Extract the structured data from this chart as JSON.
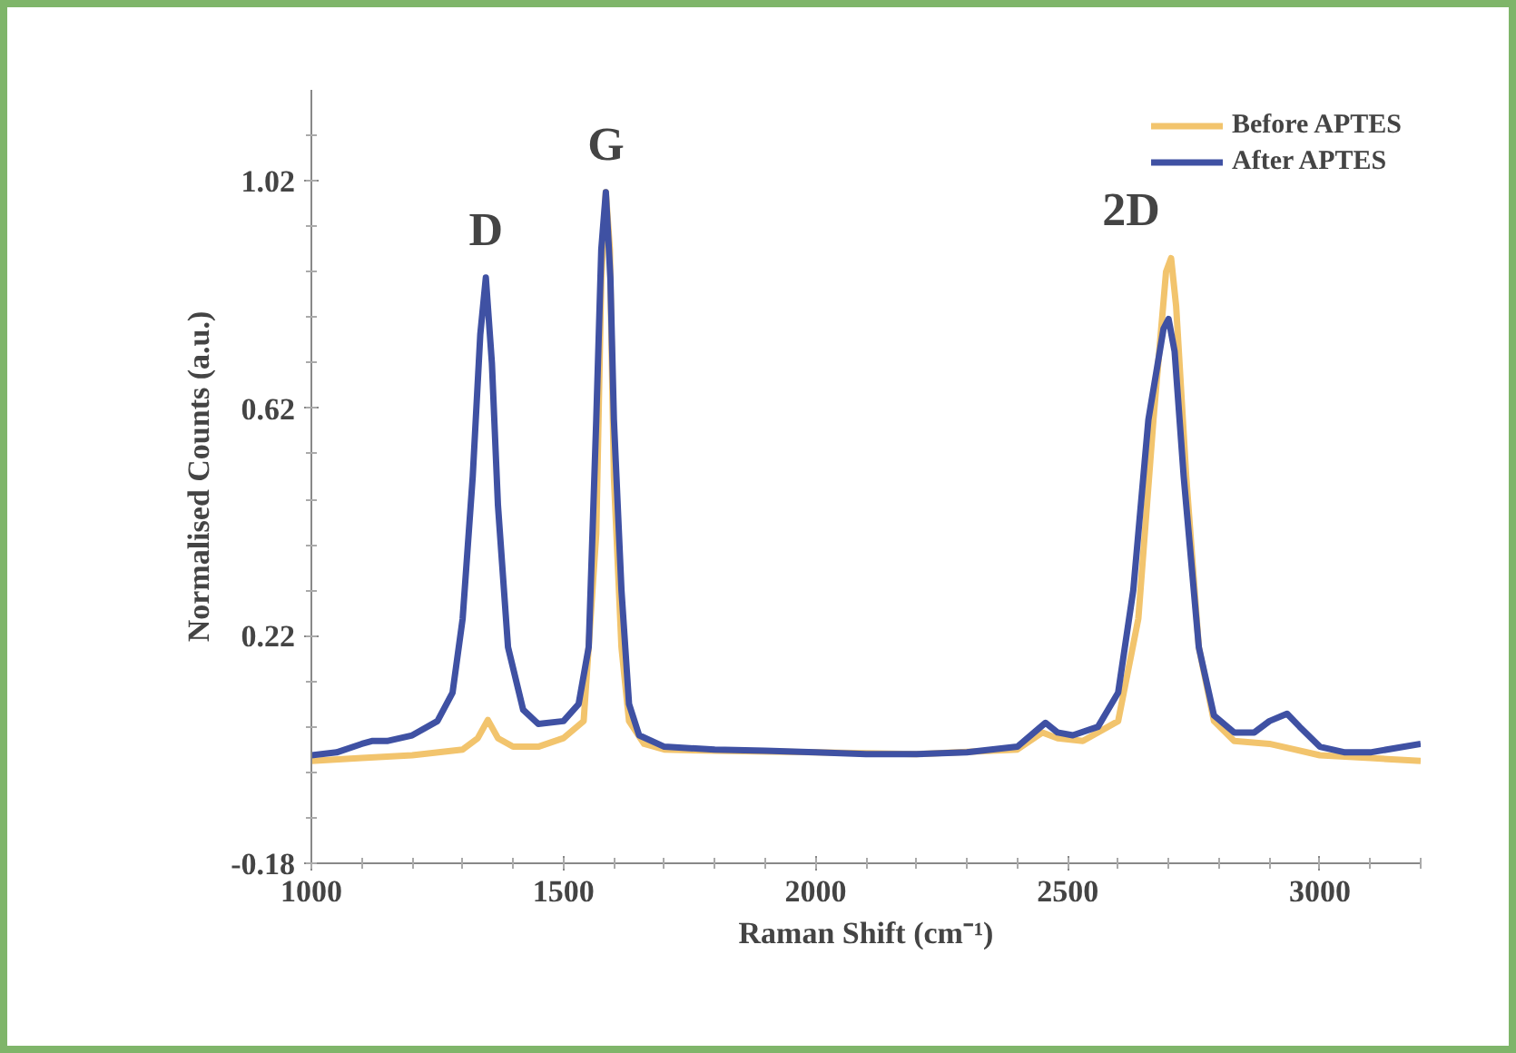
{
  "chart_data": {
    "type": "line",
    "xlabel": "Raman Shift (cm⁻¹)",
    "ylabel": "Normalised Counts (a.u.)",
    "xlim": [
      1000,
      3200
    ],
    "xticks": [
      1000,
      1500,
      2000,
      2500,
      3000
    ],
    "ylim": [
      -0.18,
      1.18
    ],
    "yticks": [
      -0.18,
      0.22,
      0.62,
      1.02
    ],
    "grid": false,
    "legend": "top right",
    "marker": "none",
    "line_style": "solid",
    "annotations": [
      "D",
      "G",
      "2D"
    ],
    "series": [
      {
        "name": "Before APTES",
        "color": "#f2c46d",
        "x": [
          1000,
          1100,
          1200,
          1300,
          1330,
          1350,
          1370,
          1400,
          1450,
          1500,
          1540,
          1565,
          1575,
          1584,
          1592,
          1600,
          1615,
          1630,
          1660,
          1700,
          1800,
          2000,
          2200,
          2400,
          2450,
          2480,
          2530,
          2600,
          2640,
          2670,
          2695,
          2705,
          2715,
          2735,
          2760,
          2790,
          2830,
          2900,
          2950,
          3000,
          3100,
          3200
        ],
        "values": [
          0.0,
          0.005,
          0.01,
          0.02,
          0.04,
          0.072,
          0.04,
          0.025,
          0.025,
          0.04,
          0.07,
          0.4,
          0.85,
          1.0,
          0.9,
          0.5,
          0.2,
          0.07,
          0.03,
          0.02,
          0.018,
          0.015,
          0.012,
          0.02,
          0.05,
          0.04,
          0.035,
          0.07,
          0.25,
          0.6,
          0.86,
          0.884,
          0.8,
          0.5,
          0.2,
          0.07,
          0.035,
          0.03,
          0.02,
          0.01,
          0.005,
          0.0
        ]
      },
      {
        "name": "After APTES",
        "color": "#3f51a3",
        "x": [
          1000,
          1050,
          1100,
          1120,
          1150,
          1200,
          1250,
          1280,
          1300,
          1320,
          1335,
          1346,
          1358,
          1370,
          1390,
          1420,
          1450,
          1500,
          1530,
          1550,
          1565,
          1575,
          1584,
          1593,
          1600,
          1615,
          1630,
          1650,
          1700,
          1800,
          1900,
          2000,
          2100,
          2200,
          2300,
          2400,
          2440,
          2456,
          2480,
          2510,
          2560,
          2600,
          2630,
          2660,
          2690,
          2700,
          2712,
          2730,
          2760,
          2790,
          2830,
          2870,
          2900,
          2935,
          2960,
          3000,
          3050,
          3100,
          3200
        ],
        "values": [
          0.01,
          0.015,
          0.03,
          0.035,
          0.035,
          0.045,
          0.07,
          0.12,
          0.25,
          0.5,
          0.75,
          0.85,
          0.7,
          0.45,
          0.2,
          0.09,
          0.065,
          0.07,
          0.1,
          0.2,
          0.6,
          0.9,
          1.0,
          0.85,
          0.6,
          0.3,
          0.1,
          0.045,
          0.025,
          0.02,
          0.018,
          0.015,
          0.012,
          0.012,
          0.015,
          0.025,
          0.055,
          0.067,
          0.05,
          0.045,
          0.06,
          0.12,
          0.3,
          0.6,
          0.76,
          0.777,
          0.72,
          0.5,
          0.2,
          0.08,
          0.05,
          0.05,
          0.07,
          0.083,
          0.06,
          0.025,
          0.015,
          0.015,
          0.03
        ]
      }
    ]
  }
}
